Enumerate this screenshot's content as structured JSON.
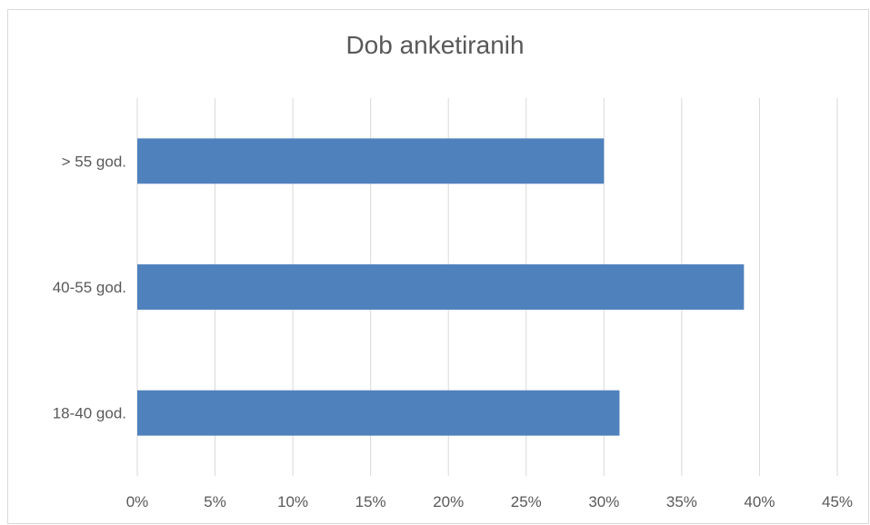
{
  "chart_data": {
    "type": "bar",
    "orientation": "horizontal",
    "title": "Dob anketiranih",
    "categories": [
      "18-40 god.",
      "40-55 god.",
      "> 55 god."
    ],
    "values": [
      31,
      39,
      30
    ],
    "value_unit": "%",
    "xlim": [
      0,
      45
    ],
    "x_ticks": [
      "0%",
      "5%",
      "10%",
      "15%",
      "20%",
      "25%",
      "30%",
      "35%",
      "40%",
      "45%"
    ],
    "grid": "vertical",
    "bar_color": "#4f81bd",
    "gridline_color": "#d9d9d9"
  }
}
